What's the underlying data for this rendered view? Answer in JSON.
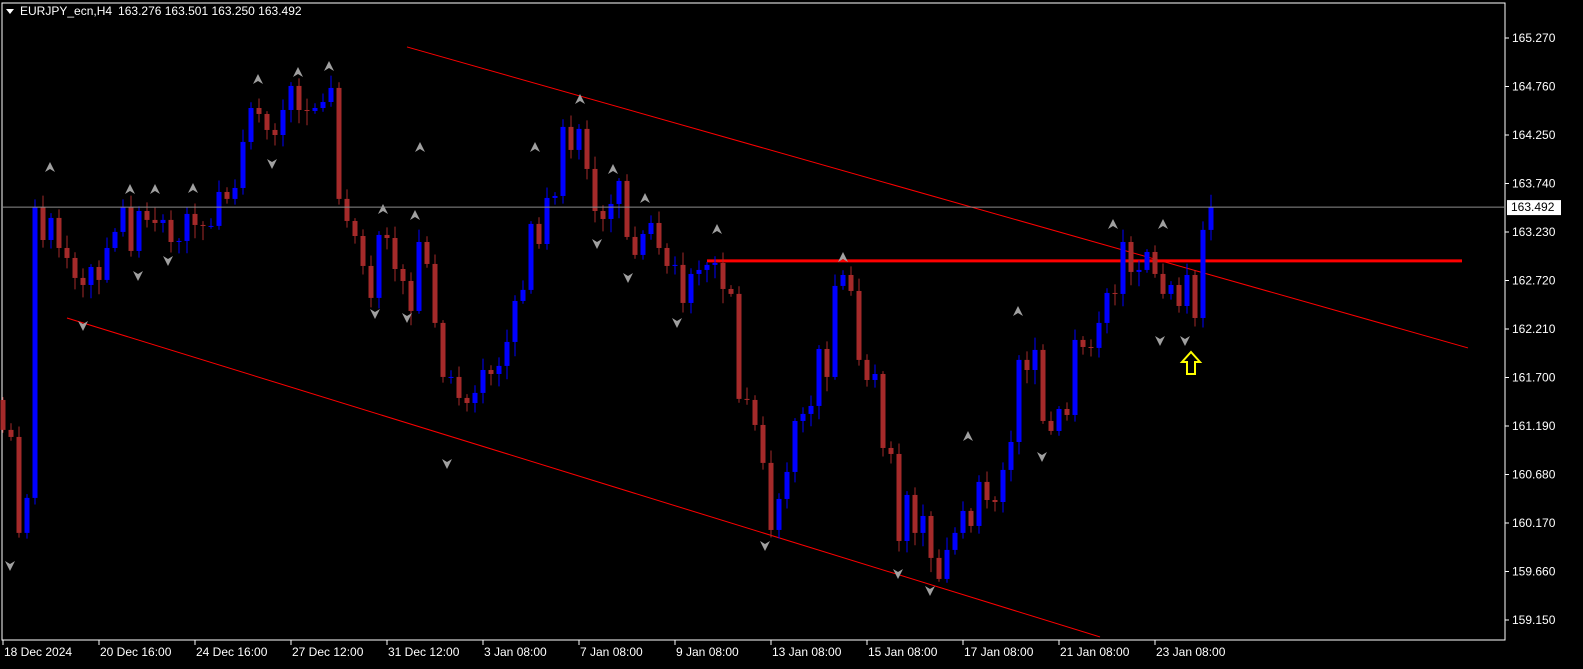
{
  "header": {
    "symbol": "EURJPY_ecn,H4",
    "ohlc": "163.276 163.501 163.250 163.492",
    "menu_icon": "triangle-down-icon"
  },
  "colors": {
    "background": "#000000",
    "bull": "#0000ff",
    "bear": "#a52a2a",
    "trendline": "#ff0000",
    "fractal": "#a0a0a0",
    "signal_arrow": "#ffff00",
    "price_line": "#8c8c8c"
  },
  "chart_data": {
    "type": "candlestick",
    "title": "EURJPY_ecn,H4",
    "ylim": [
      159.0,
      165.6
    ],
    "grid": false,
    "y_ticks": [
      "165.270",
      "164.760",
      "164.250",
      "163.740",
      "163.230",
      "162.720",
      "162.210",
      "161.700",
      "161.190",
      "160.680",
      "160.170",
      "159.660",
      "159.150"
    ],
    "x_ticks": [
      "18 Dec 2024",
      "20 Dec 16:00",
      "24 Dec 16:00",
      "27 Dec 12:00",
      "31 Dec 12:00",
      "3 Jan 08:00",
      "7 Jan 08:00",
      "9 Jan 08:00",
      "13 Jan 08:00",
      "15 Jan 08:00",
      "17 Jan 08:00",
      "21 Jan 08:00",
      "23 Jan 08:00"
    ],
    "current_price": "163.492",
    "first_open": 161.464,
    "closes": [
      161.149,
      161.075,
      160.066,
      160.434,
      163.493,
      163.146,
      163.378,
      163.062,
      162.957,
      162.747,
      162.673,
      162.862,
      162.726,
      163.062,
      163.231,
      163.493,
      163.031,
      163.451,
      163.357,
      163.325,
      163.357,
      163.125,
      163.136,
      163.42,
      163.304,
      163.294,
      163.294,
      163.651,
      163.578,
      163.693,
      164.177,
      164.534,
      164.471,
      164.303,
      164.25,
      164.513,
      164.766,
      164.513,
      164.503,
      164.534,
      164.597,
      164.745,
      163.578,
      163.346,
      163.188,
      162.873,
      162.537,
      163.199,
      163.167,
      162.841,
      162.715,
      162.4,
      163.125,
      162.894,
      162.274,
      161.706,
      161.706,
      161.485,
      161.432,
      161.538,
      161.779,
      161.737,
      161.822,
      162.074,
      162.505,
      162.621,
      163.315,
      163.104,
      163.588,
      163.609,
      164.335,
      164.093,
      164.314,
      163.893,
      163.451,
      163.367,
      163.525,
      163.767,
      163.178,
      162.989,
      163.209,
      163.325,
      163.062,
      162.873,
      162.884,
      162.484,
      162.789,
      162.831,
      162.884,
      162.905,
      162.631,
      162.579,
      161.475,
      161.464,
      161.201,
      160.802,
      160.097,
      160.423,
      160.707,
      161.243,
      161.317,
      161.401,
      162.0,
      161.706,
      162.663,
      162.778,
      162.61,
      161.885,
      161.674,
      161.737,
      160.959,
      160.896,
      159.981,
      160.465,
      160.066,
      160.244,
      159.803,
      159.582,
      159.887,
      160.066,
      160.297,
      160.139,
      160.602,
      160.412,
      160.391,
      160.728,
      161.022,
      161.885,
      161.779,
      161.99,
      161.243,
      161.138,
      161.369,
      161.306,
      162.095,
      162.021,
      162.011,
      162.274,
      162.589,
      162.579,
      163.125,
      162.81,
      162.831,
      163.02,
      162.789,
      162.579,
      162.673,
      162.452,
      162.778,
      162.326,
      163.252,
      163.492
    ],
    "trendlines": [
      {
        "kind": "channel-upper",
        "from_price": 165.176,
        "to_price": 162.011
      },
      {
        "kind": "channel-lower",
        "from_price": 162.326,
        "to_price": 158.972
      },
      {
        "kind": "horizontal-resistance",
        "price": 162.926
      }
    ]
  }
}
